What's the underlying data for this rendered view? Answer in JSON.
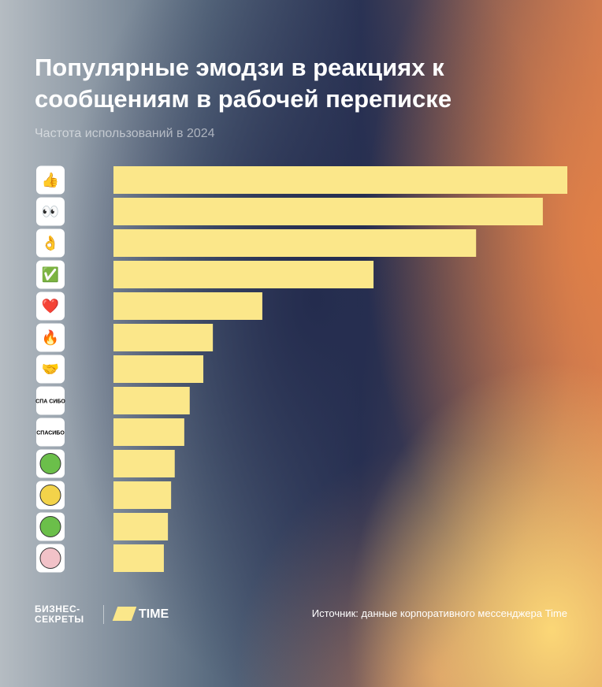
{
  "chart_data": {
    "type": "hbar",
    "title": "Популярные эмодзи в реакциях к сообщениям в рабочей переписке",
    "subtitle": "Частота использований в 2024",
    "categories": [
      "👍",
      "👀",
      "👌",
      "✅",
      "❤️",
      "🔥",
      "🤝",
      "СПА СИБО",
      "СПАСИБО",
      null,
      null,
      null,
      null
    ],
    "values": [
      100,
      94.6,
      79.9,
      57.3,
      32.8,
      21.9,
      19.8,
      16.8,
      15.6,
      13.5,
      12.7,
      12.0,
      11.1
    ],
    "xlim": [
      0,
      100
    ],
    "color": "#fbe78a",
    "source": "Источник: данные корпоративного мессенджера Time"
  },
  "logos": {
    "brand": "БИЗНЕС-\nСЕКРЕТЫ",
    "partner": "TIME"
  }
}
